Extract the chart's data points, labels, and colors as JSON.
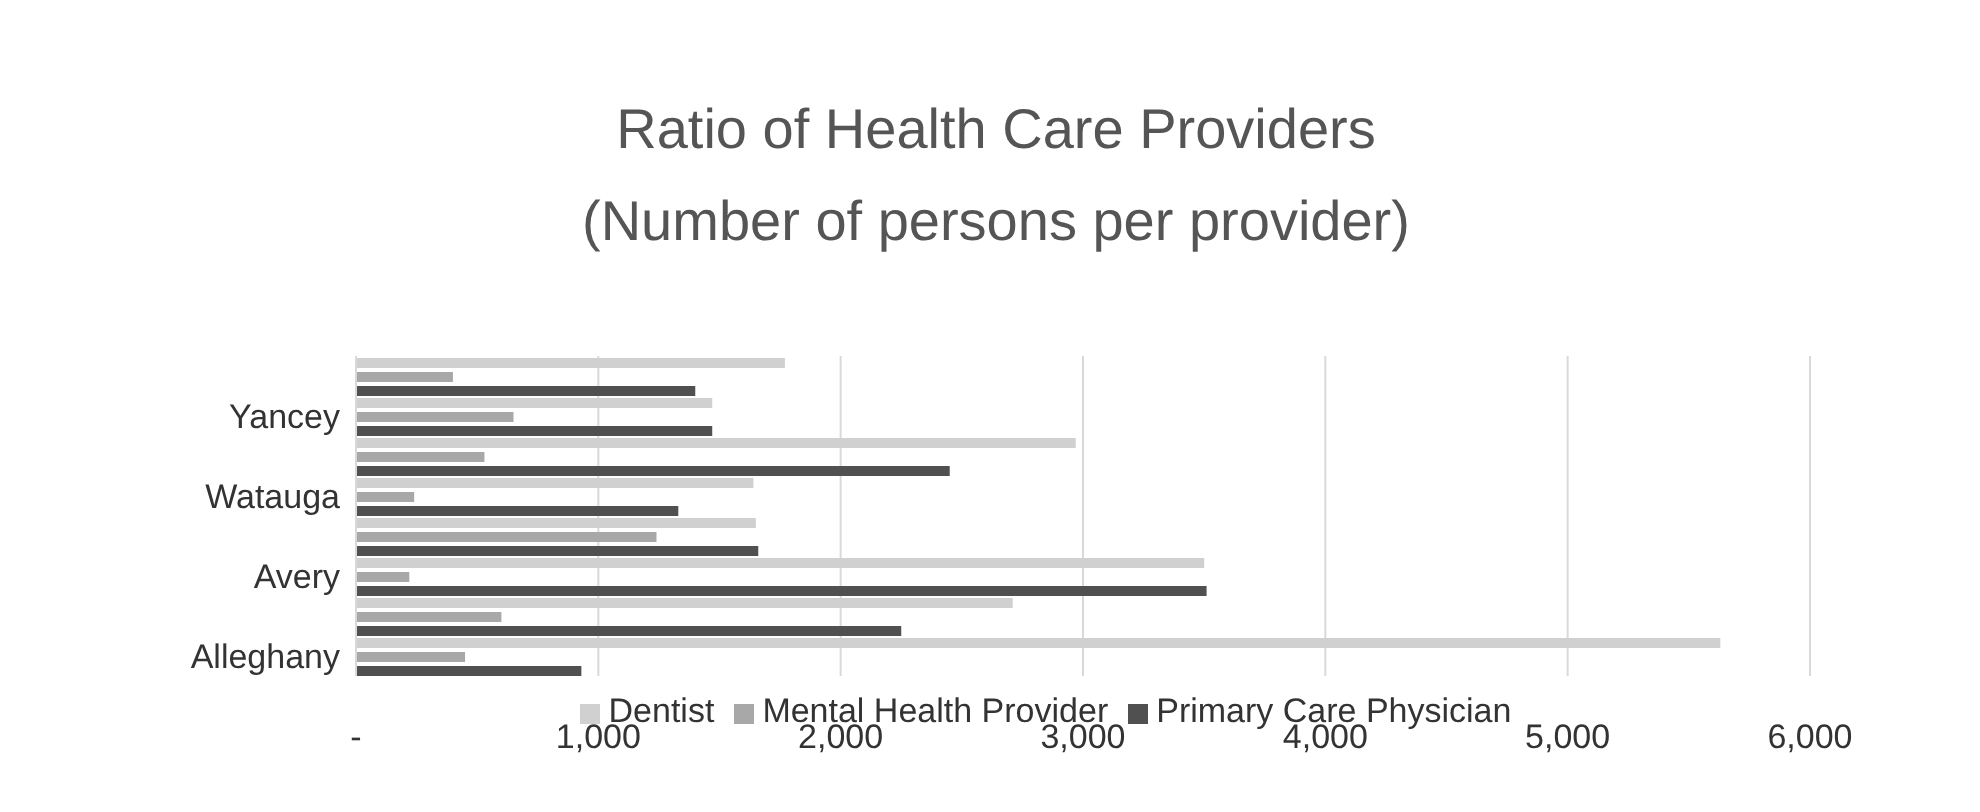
{
  "chart_data": {
    "type": "bar",
    "orientation": "horizontal",
    "title": "Ratio of Health Care Providers",
    "subtitle": "(Number of persons per provider)",
    "categories": [
      null,
      "Yancey",
      null,
      "Watauga",
      null,
      "Avery",
      null,
      "Alleghany"
    ],
    "series": [
      {
        "name": "Dentist",
        "color": "#d0d0d0",
        "values": [
          1770,
          1470,
          2970,
          1640,
          1650,
          3500,
          2710,
          5630
        ]
      },
      {
        "name": "Mental Health Provider",
        "color": "#a8a8a8",
        "values": [
          400,
          650,
          530,
          240,
          1240,
          220,
          600,
          450
        ]
      },
      {
        "name": "Primary Care Physician",
        "color": "#505050",
        "values": [
          1400,
          1470,
          2450,
          1330,
          1660,
          3510,
          2250,
          930
        ]
      }
    ],
    "xlim": [
      0,
      6000
    ],
    "xticks": [
      {
        "value": 0,
        "label": "-"
      },
      {
        "value": 1000,
        "label": "1,000"
      },
      {
        "value": 2000,
        "label": "2,000"
      },
      {
        "value": 3000,
        "label": "3,000"
      },
      {
        "value": 4000,
        "label": "4,000"
      },
      {
        "value": 5000,
        "label": "5,000"
      },
      {
        "value": 6000,
        "label": "6,000"
      }
    ],
    "grid": "x",
    "legend": "bottom"
  }
}
